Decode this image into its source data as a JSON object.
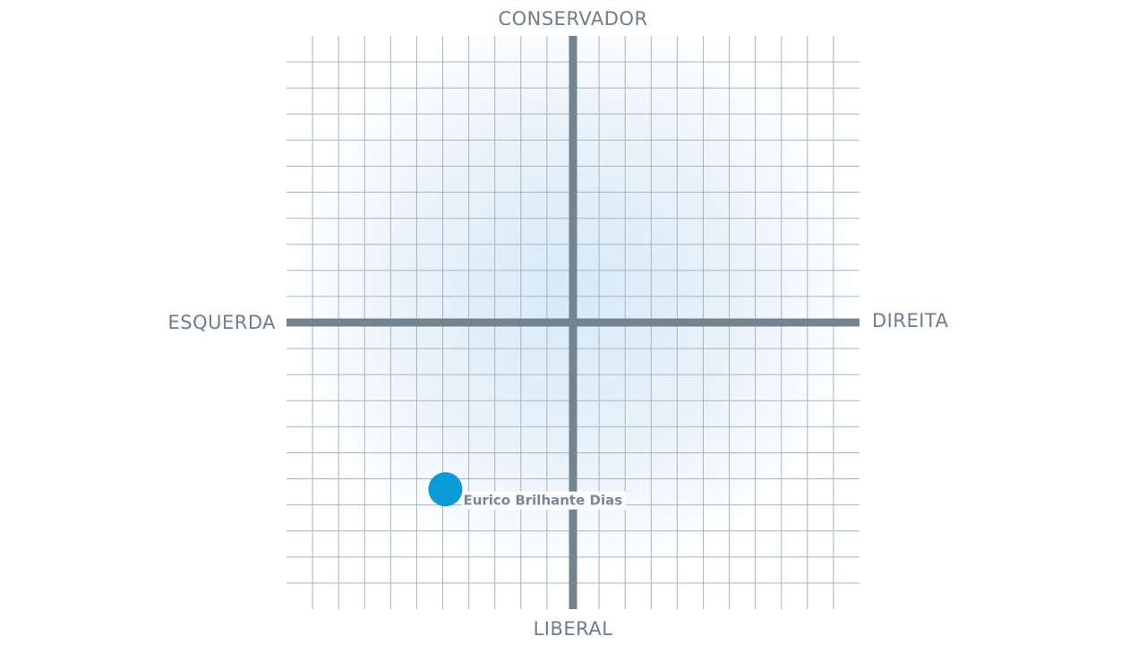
{
  "chart_data": {
    "type": "scatter",
    "axis_labels": {
      "top": "CONSERVADOR",
      "bottom": "LIBERAL",
      "left": "ESQUERDA",
      "right": "DIREITA"
    },
    "series": [
      {
        "name": "Eurico Brilhante Dias",
        "color": "#0a9ad8",
        "x": [
          -4.9
        ],
        "values": [
          -6.4
        ]
      }
    ],
    "xlim": [
      -11,
      11
    ],
    "ylim": [
      -11,
      11
    ],
    "xticks": [
      -10,
      -9,
      -8,
      -7,
      -6,
      -5,
      -4,
      -3,
      -2,
      -1,
      0,
      1,
      2,
      3,
      4,
      5,
      6,
      7,
      8,
      9,
      10
    ],
    "yticks": [
      -10,
      -9,
      -8,
      -7,
      -6,
      -5,
      -4,
      -3,
      -2,
      -1,
      0,
      1,
      2,
      3,
      4,
      5,
      6,
      7,
      8,
      9,
      10
    ],
    "grid": true
  }
}
